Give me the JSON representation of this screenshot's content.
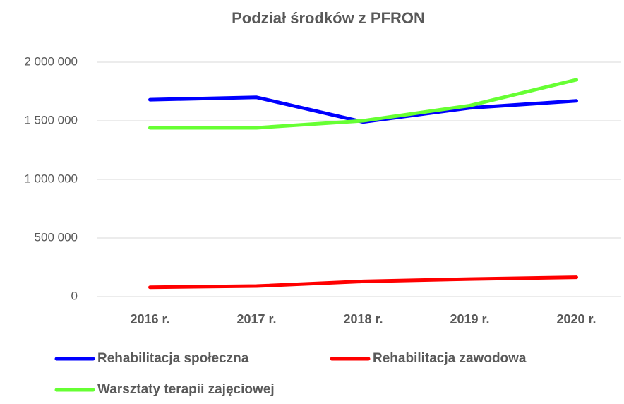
{
  "chart_data": {
    "type": "line",
    "title": "Podział środków z PFRON",
    "categories": [
      "2016 r.",
      "2017 r.",
      "2018 r.",
      "2019 r.",
      "2020 r."
    ],
    "series": [
      {
        "name": "Rehabilitacja społeczna",
        "color": "#0000ff",
        "values": [
          1680000,
          1700000,
          1490000,
          1610000,
          1670000
        ]
      },
      {
        "name": "Rehabilitacja zawodowa",
        "color": "#ff0000",
        "values": [
          80000,
          90000,
          130000,
          150000,
          165000
        ]
      },
      {
        "name": "Warsztaty terapii zajęciowej",
        "color": "#66ff33",
        "values": [
          1440000,
          1440000,
          1500000,
          1630000,
          1850000
        ]
      }
    ],
    "ylim": [
      0,
      2000000
    ],
    "yticks": [
      0,
      {
        "value": 500000,
        "label": "500 000"
      },
      {
        "value": 1000000,
        "label": "1 000 000"
      },
      {
        "value": 1500000,
        "label": "1 500 000"
      },
      {
        "value": 2000000,
        "label": "2 000 000"
      }
    ],
    "grid": true,
    "legend": "bottom"
  }
}
